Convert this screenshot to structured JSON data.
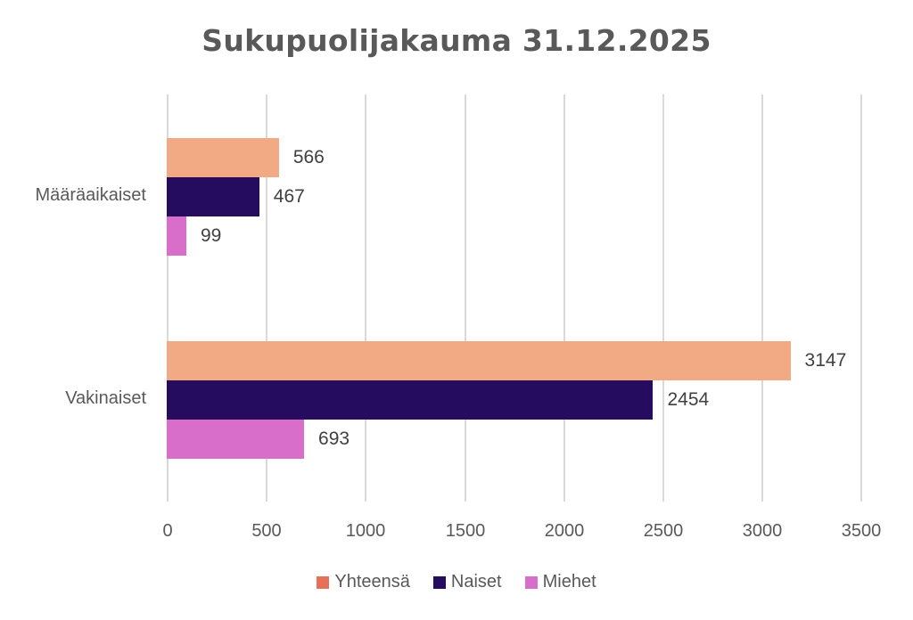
{
  "chart_data": {
    "type": "bar",
    "orientation": "horizontal",
    "title": "Sukupuolijakauma 31.12.2025",
    "categories": [
      "Määräaikaiset",
      "Vakinaiset"
    ],
    "series": [
      {
        "name": "Yhteensä",
        "values": [
          566,
          3147
        ],
        "color": "#f2aa84",
        "legend_color": "#e97058"
      },
      {
        "name": "Naiset",
        "values": [
          467,
          2454
        ],
        "color": "#250c5e",
        "legend_color": "#250c5e"
      },
      {
        "name": "Miehet",
        "values": [
          99,
          693
        ],
        "color": "#d86ec9",
        "legend_color": "#d86ec9"
      }
    ],
    "xlabel": "",
    "ylabel": "",
    "xlim": [
      0,
      3500
    ],
    "xticks": [
      "0",
      "500",
      "1000",
      "1500",
      "2000",
      "2500",
      "3000",
      "3500"
    ],
    "grid": true,
    "legend_position": "bottom",
    "data_labels": true
  }
}
